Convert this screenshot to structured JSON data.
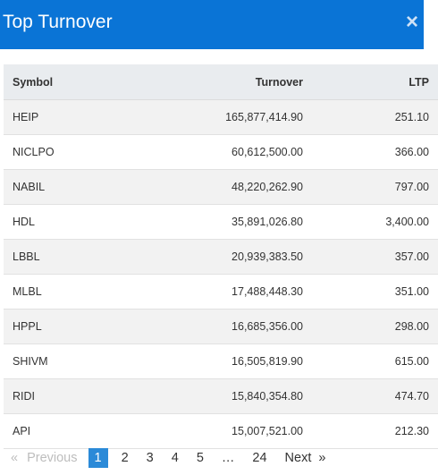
{
  "modal": {
    "title": "Top Turnover",
    "close_symbol": "×"
  },
  "table": {
    "headers": {
      "symbol": "Symbol",
      "turnover": "Turnover",
      "ltp": "LTP"
    },
    "rows": [
      {
        "symbol": "HEIP",
        "turnover": "165,877,414.90",
        "ltp": "251.10"
      },
      {
        "symbol": "NICLPO",
        "turnover": "60,612,500.00",
        "ltp": "366.00"
      },
      {
        "symbol": "NABIL",
        "turnover": "48,220,262.90",
        "ltp": "797.00"
      },
      {
        "symbol": "HDL",
        "turnover": "35,891,026.80",
        "ltp": "3,400.00"
      },
      {
        "symbol": "LBBL",
        "turnover": "20,939,383.50",
        "ltp": "357.00"
      },
      {
        "symbol": "MLBL",
        "turnover": "17,488,448.30",
        "ltp": "351.00"
      },
      {
        "symbol": "HPPL",
        "turnover": "16,685,356.00",
        "ltp": "298.00"
      },
      {
        "symbol": "SHIVM",
        "turnover": "16,505,819.90",
        "ltp": "615.00"
      },
      {
        "symbol": "RIDI",
        "turnover": "15,840,354.80",
        "ltp": "474.70"
      },
      {
        "symbol": "API",
        "turnover": "15,007,521.00",
        "ltp": "212.30"
      }
    ]
  },
  "pagination": {
    "prev_arrow": "«",
    "prev_label": "Previous",
    "pages": [
      "1",
      "2",
      "3",
      "4",
      "5",
      "…",
      "24"
    ],
    "active_page": "1",
    "next_label": "Next",
    "next_arrow": "»"
  }
}
